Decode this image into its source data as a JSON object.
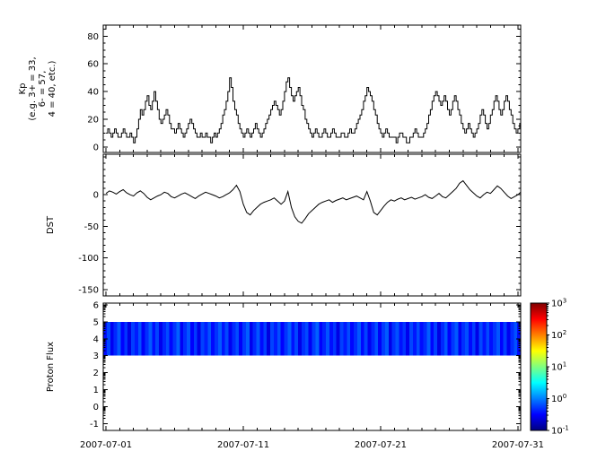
{
  "figure": {
    "background": "#ffffff",
    "axis_color": "#000000",
    "trace_color": "#000000"
  },
  "x_axis": {
    "range_days": [
      0.8,
      31.2
    ],
    "major_tick_days": [
      1,
      11,
      21,
      31
    ],
    "tick_labels": [
      "2007-07-01",
      "2007-07-11",
      "2007-07-21",
      "2007-07-31"
    ],
    "minor_tick_step_days": 1
  },
  "chart_data": [
    {
      "type": "line",
      "name": "kp-index",
      "ylabel_lines": [
        "Kp",
        "(e.g. 3+ = 33,",
        "6- = 57,",
        "4 = 40, etc.)"
      ],
      "ylim": [
        -4,
        88
      ],
      "yticks": [
        0,
        20,
        40,
        60,
        80
      ],
      "y_minor_step": 5,
      "step_plot": true,
      "series_start_day": 1,
      "series_step_days": 0.125,
      "values": [
        10,
        13,
        10,
        7,
        10,
        13,
        10,
        7,
        7,
        10,
        13,
        10,
        7,
        7,
        10,
        7,
        3,
        7,
        13,
        20,
        27,
        23,
        27,
        33,
        37,
        30,
        27,
        33,
        40,
        33,
        27,
        20,
        17,
        20,
        23,
        27,
        23,
        17,
        13,
        13,
        10,
        13,
        17,
        13,
        10,
        7,
        10,
        13,
        17,
        20,
        17,
        13,
        10,
        7,
        7,
        10,
        7,
        7,
        10,
        7,
        7,
        3,
        7,
        10,
        7,
        10,
        13,
        17,
        23,
        27,
        33,
        40,
        50,
        43,
        33,
        27,
        23,
        17,
        13,
        10,
        7,
        10,
        13,
        10,
        7,
        10,
        13,
        17,
        13,
        10,
        7,
        10,
        13,
        17,
        20,
        23,
        27,
        30,
        33,
        30,
        27,
        23,
        27,
        33,
        40,
        47,
        50,
        43,
        37,
        33,
        37,
        40,
        43,
        37,
        30,
        27,
        20,
        17,
        13,
        10,
        7,
        10,
        13,
        10,
        7,
        7,
        10,
        13,
        10,
        7,
        7,
        10,
        13,
        10,
        7,
        7,
        7,
        10,
        10,
        7,
        7,
        10,
        13,
        10,
        10,
        13,
        17,
        20,
        23,
        27,
        33,
        37,
        43,
        40,
        37,
        33,
        27,
        23,
        17,
        13,
        10,
        7,
        10,
        13,
        10,
        7,
        7,
        7,
        7,
        3,
        7,
        10,
        10,
        7,
        7,
        3,
        3,
        7,
        7,
        10,
        13,
        10,
        7,
        7,
        7,
        10,
        13,
        17,
        23,
        27,
        33,
        37,
        40,
        37,
        33,
        30,
        33,
        37,
        33,
        27,
        23,
        27,
        33,
        37,
        33,
        27,
        23,
        17,
        13,
        10,
        13,
        17,
        13,
        10,
        7,
        10,
        13,
        17,
        23,
        27,
        23,
        17,
        13,
        17,
        23,
        27,
        33,
        37,
        33,
        27,
        23,
        27,
        33,
        37,
        33,
        27,
        23,
        17,
        13,
        10,
        13,
        17,
        23,
        27,
        23,
        17,
        27,
        33
      ]
    },
    {
      "type": "line",
      "name": "dst-index",
      "ylabel": "DST",
      "ylim": [
        -160,
        64
      ],
      "yticks": [
        0,
        -50,
        -100,
        -150
      ],
      "y_minor_step": 10,
      "step_plot": false,
      "series_start_day": 1,
      "series_step_days": 0.25,
      "values": [
        2,
        6,
        4,
        1,
        5,
        8,
        3,
        0,
        -2,
        3,
        6,
        2,
        -4,
        -8,
        -5,
        -2,
        0,
        4,
        2,
        -3,
        -5,
        -2,
        1,
        3,
        0,
        -3,
        -6,
        -2,
        1,
        4,
        2,
        0,
        -2,
        -5,
        -3,
        0,
        3,
        8,
        15,
        5,
        -15,
        -28,
        -32,
        -25,
        -20,
        -15,
        -12,
        -10,
        -8,
        -5,
        -10,
        -15,
        -10,
        5,
        -20,
        -35,
        -42,
        -45,
        -38,
        -30,
        -25,
        -20,
        -15,
        -12,
        -10,
        -8,
        -12,
        -9,
        -7,
        -5,
        -8,
        -6,
        -4,
        -2,
        -5,
        -8,
        5,
        -10,
        -28,
        -32,
        -25,
        -18,
        -12,
        -8,
        -10,
        -7,
        -5,
        -8,
        -6,
        -4,
        -7,
        -5,
        -3,
        0,
        -4,
        -6,
        -2,
        2,
        -3,
        -5,
        0,
        5,
        10,
        18,
        22,
        15,
        8,
        3,
        -2,
        -5,
        0,
        4,
        2,
        8,
        14,
        10,
        4,
        -2,
        -6,
        -3,
        0,
        5,
        -3,
        -8
      ]
    },
    {
      "type": "heatmap",
      "name": "proton-flux",
      "ylabel": "Proton Flux",
      "ylim": [
        -1.4,
        6.1
      ],
      "yticks": [
        6,
        5,
        4,
        3,
        2,
        1,
        0,
        -1
      ],
      "log_minor_ticks": true,
      "band_y_range": [
        3,
        5
      ],
      "band_start_day": 0.8,
      "band_end_day": 31.2,
      "flux_values": [
        0.35,
        0.6,
        0.28,
        0.45,
        0.7,
        0.32,
        0.5,
        0.25,
        0.55,
        0.4,
        0.65,
        0.3,
        0.48,
        0.72,
        0.36,
        0.58,
        0.27,
        0.44,
        0.62,
        0.33,
        0.5,
        0.75,
        0.29,
        0.47,
        0.68,
        0.31,
        0.53,
        0.26,
        0.57,
        0.42,
        0.66,
        0.34,
        0.49,
        0.71,
        0.38,
        0.6,
        0.28,
        0.46,
        0.63,
        0.3,
        0.52,
        0.74,
        0.27,
        0.45,
        0.69,
        0.35,
        0.55,
        0.24,
        0.58,
        0.41,
        0.64,
        0.32,
        0.5,
        0.73,
        0.37,
        0.59,
        0.26,
        0.48,
        0.61,
        0.29,
        0.54,
        0.76,
        0.31,
        0.43,
        0.67,
        0.36,
        0.51,
        0.25,
        0.56,
        0.4,
        0.62,
        0.33,
        0.47,
        0.7,
        0.34,
        0.57,
        0.28,
        0.44,
        0.65,
        0.3,
        0.53,
        0.72,
        0.26,
        0.49,
        0.66,
        0.37,
        0.5,
        0.27,
        0.59,
        0.39,
        0.63,
        0.35,
        0.46,
        0.74,
        0.33,
        0.56,
        0.25,
        0.45,
        0.68,
        0.31,
        0.51,
        0.7,
        0.29,
        0.48,
        0.64,
        0.34,
        0.54,
        0.26,
        0.6,
        0.38,
        0.61,
        0.36,
        0.5,
        0.69,
        0.32,
        0.55,
        0.28,
        0.47,
        0.66,
        0.35
      ]
    }
  ],
  "colorbar": {
    "scale": "log10",
    "range": [
      0.1,
      1000
    ],
    "tick_base": "10",
    "tick_exponents": [
      3,
      2,
      1,
      0,
      -1
    ],
    "jet_stops": [
      {
        "t": 0.0,
        "color": "#000080"
      },
      {
        "t": 0.125,
        "color": "#0000ff"
      },
      {
        "t": 0.375,
        "color": "#00ffff"
      },
      {
        "t": 0.625,
        "color": "#ffff00"
      },
      {
        "t": 0.875,
        "color": "#ff0000"
      },
      {
        "t": 1.0,
        "color": "#800000"
      }
    ]
  }
}
